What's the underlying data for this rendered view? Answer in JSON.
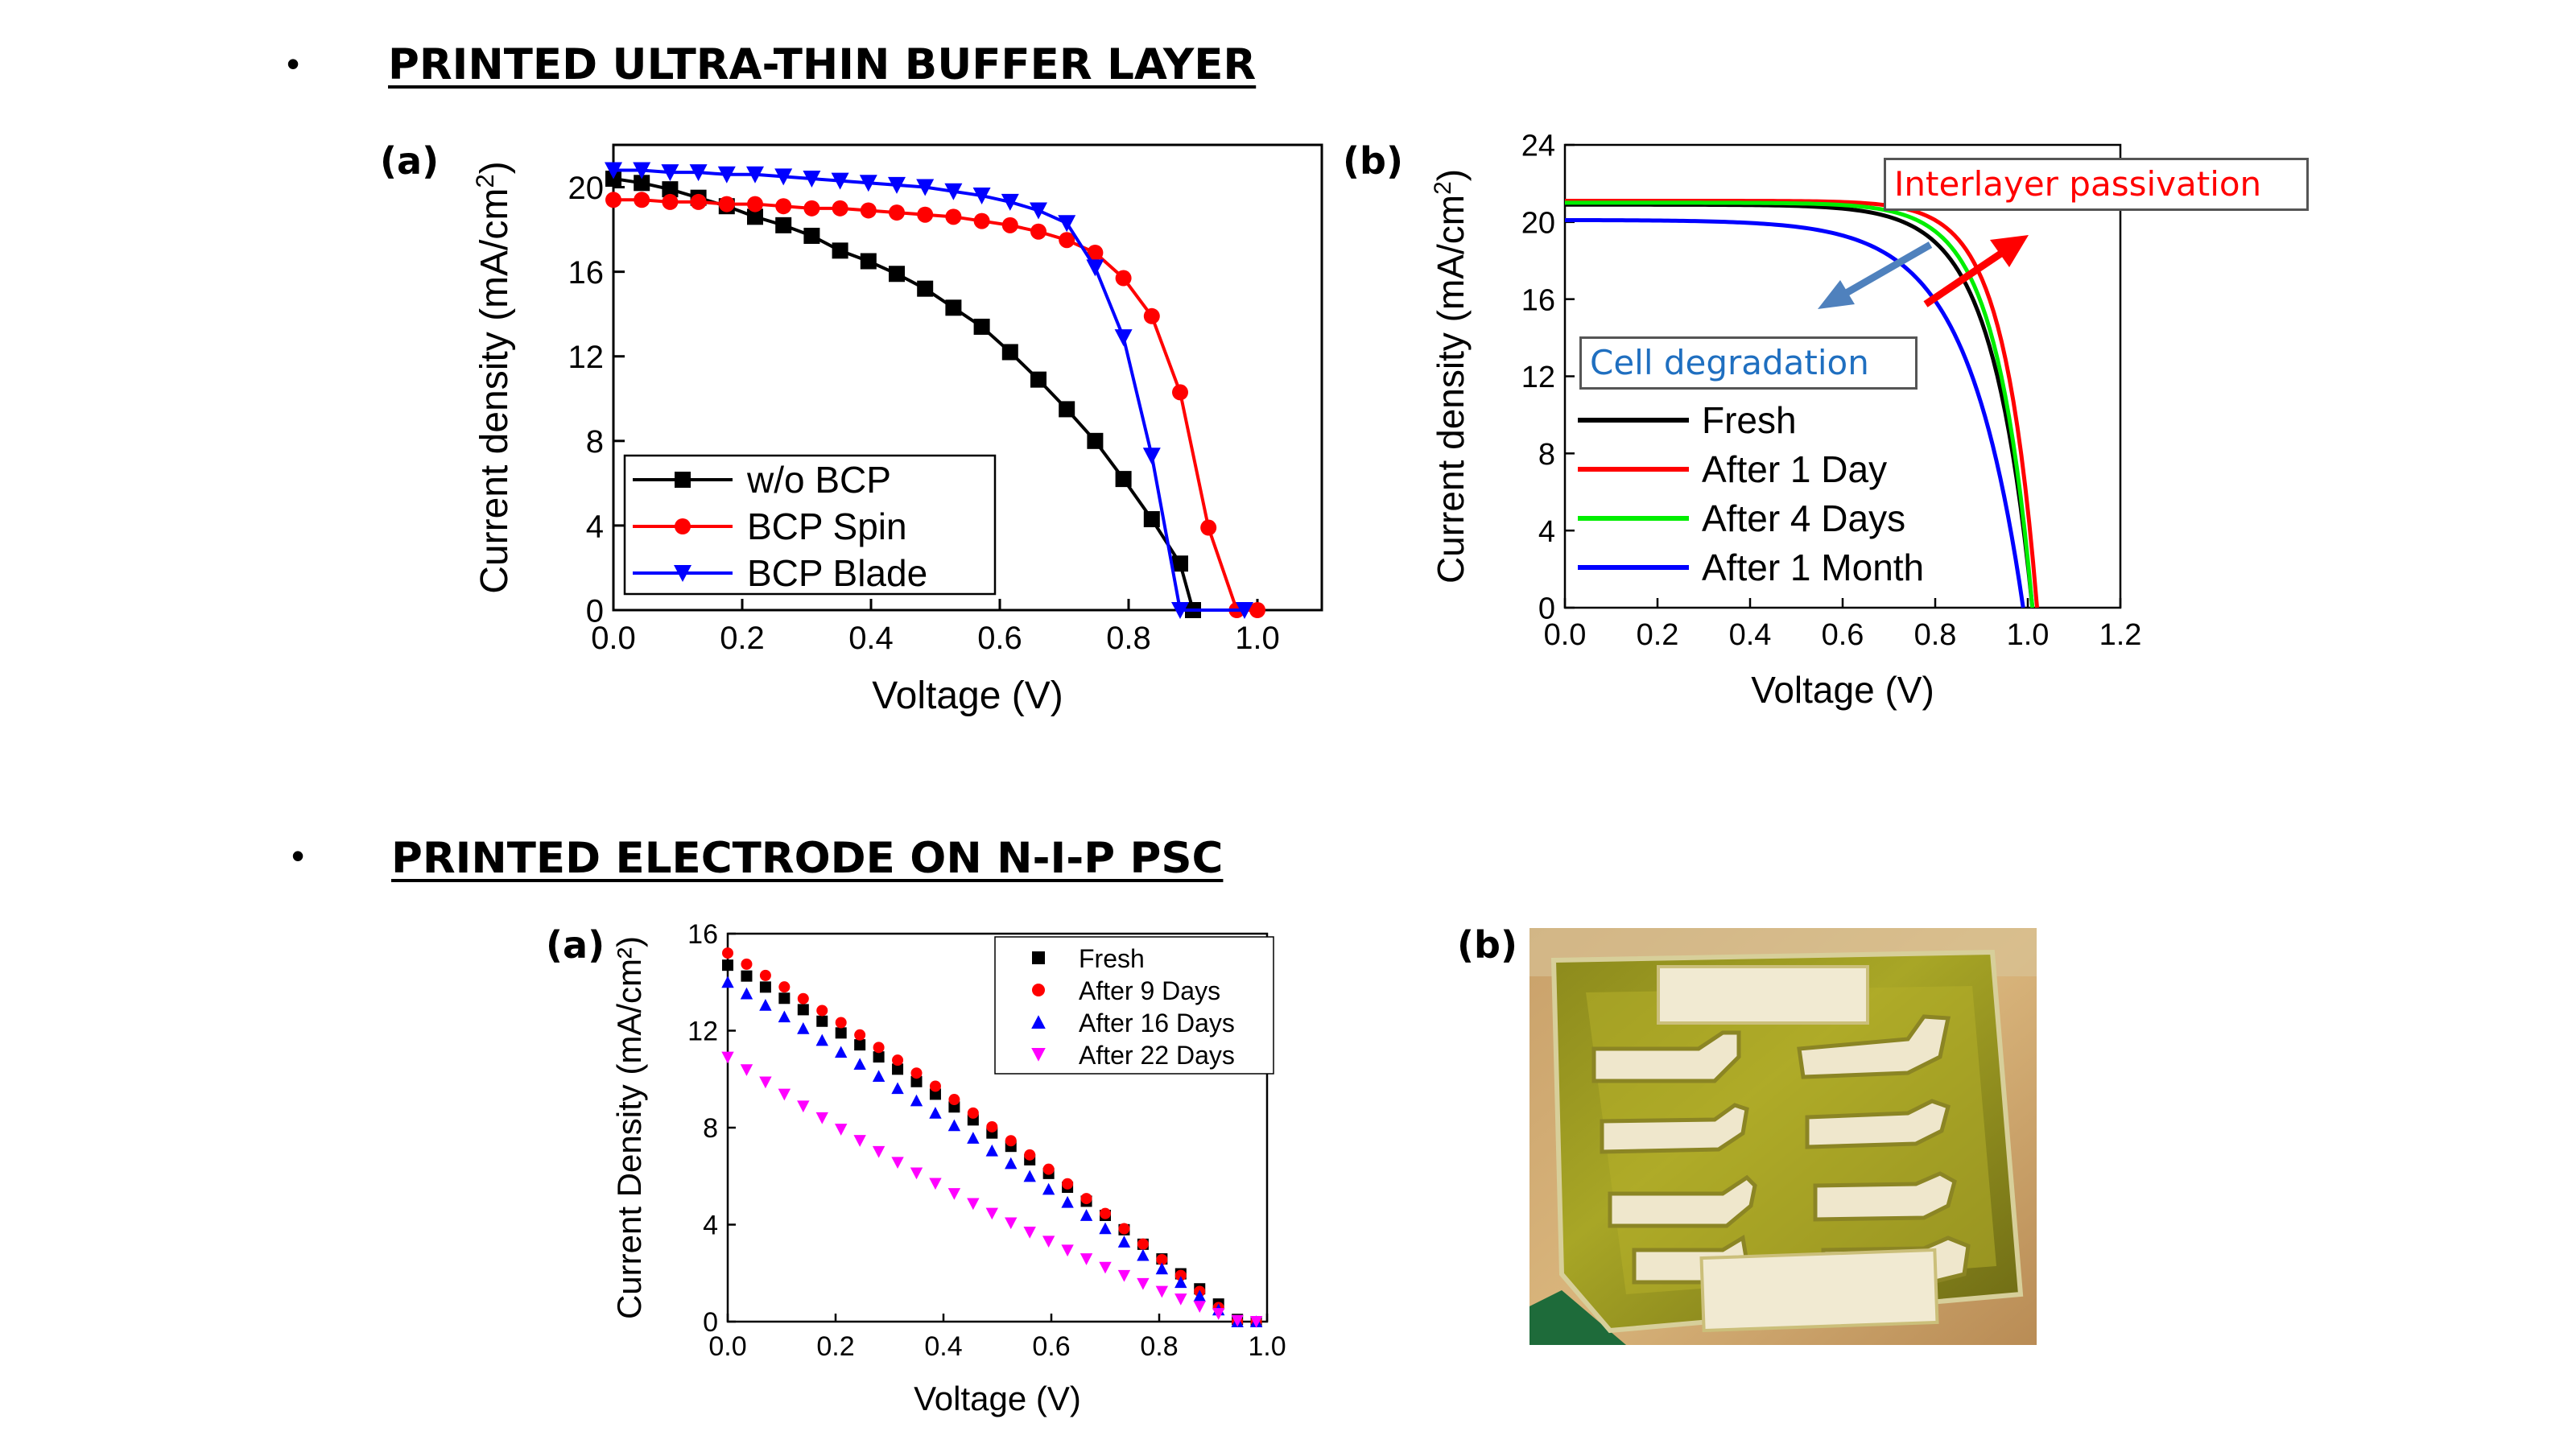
{
  "sections": [
    {
      "bullet": "•",
      "title": "PRINTED ULTRA-THIN BUFFER LAYER"
    },
    {
      "bullet": "•",
      "title": "PRINTED ELECTRODE ON N-I-P PSC"
    }
  ],
  "panel_labels": {
    "top_a": "(a)",
    "top_b": "(b)",
    "bottom_a": "(a)",
    "bottom_b": "(b)"
  },
  "annotations": {
    "interlayer": "Interlayer passivation",
    "degradation": "Cell degradation"
  },
  "photo": {
    "description_icon": "printed-device-photo"
  },
  "chart_data": [
    {
      "type": "line",
      "xlabel": "Voltage (V)",
      "ylabel": "Current density (mA/cm",
      "ylabel_sup": "2",
      "ylabel_tail": ")",
      "xlim": [
        0,
        1.1
      ],
      "ylim": [
        0,
        22
      ],
      "xticks": [
        0.0,
        0.2,
        0.4,
        0.6,
        0.8,
        1.0
      ],
      "xtick_labels": [
        "0.0",
        "0.2",
        "0.4",
        "0.6",
        "0.8",
        "1.0"
      ],
      "yticks": [
        0,
        4,
        8,
        12,
        16,
        20
      ],
      "ytick_labels": [
        "0",
        "4",
        "8",
        "12",
        "16",
        "20"
      ],
      "legend": "lower-left",
      "series": [
        {
          "name": "w/o BCP",
          "color": "#000000",
          "marker": "square",
          "x": [
            0.0,
            0.044,
            0.088,
            0.132,
            0.176,
            0.22,
            0.264,
            0.308,
            0.352,
            0.396,
            0.44,
            0.484,
            0.528,
            0.572,
            0.616,
            0.66,
            0.704,
            0.748,
            0.792,
            0.836,
            0.88,
            0.9
          ],
          "y": [
            20.4,
            20.2,
            19.9,
            19.5,
            19.1,
            18.6,
            18.2,
            17.7,
            17.0,
            16.5,
            15.9,
            15.2,
            14.3,
            13.4,
            12.2,
            10.9,
            9.5,
            8.0,
            6.2,
            4.3,
            2.2,
            0.0
          ]
        },
        {
          "name": "BCP Spin",
          "color": "#ff0000",
          "marker": "circle",
          "x": [
            0.0,
            0.044,
            0.088,
            0.132,
            0.176,
            0.22,
            0.264,
            0.308,
            0.352,
            0.396,
            0.44,
            0.484,
            0.528,
            0.572,
            0.616,
            0.66,
            0.704,
            0.748,
            0.792,
            0.836,
            0.88,
            0.924,
            0.968,
            1.0
          ],
          "y": [
            19.4,
            19.4,
            19.3,
            19.3,
            19.2,
            19.2,
            19.1,
            19.0,
            19.0,
            18.9,
            18.8,
            18.7,
            18.6,
            18.4,
            18.2,
            17.9,
            17.5,
            16.9,
            15.7,
            13.9,
            10.3,
            3.9,
            0.0,
            0.0
          ]
        },
        {
          "name": "BCP Blade",
          "color": "#0000ff",
          "marker": "triangle-down",
          "x": [
            0.0,
            0.044,
            0.088,
            0.132,
            0.176,
            0.22,
            0.264,
            0.308,
            0.352,
            0.396,
            0.44,
            0.484,
            0.528,
            0.572,
            0.616,
            0.66,
            0.704,
            0.748,
            0.792,
            0.836,
            0.88,
            0.924,
            0.98
          ],
          "y": [
            20.8,
            20.8,
            20.7,
            20.7,
            20.6,
            20.6,
            20.5,
            20.4,
            20.3,
            20.2,
            20.1,
            20.0,
            19.8,
            19.6,
            19.3,
            18.9,
            18.3,
            16.2,
            12.9,
            7.3,
            0.0,
            0.0,
            0.0
          ]
        }
      ]
    },
    {
      "type": "line",
      "xlabel": "Voltage (V)",
      "ylabel": "Current density (mA/cm",
      "ylabel_sup": "2",
      "ylabel_tail": ")",
      "xlim": [
        0,
        1.2
      ],
      "ylim": [
        0,
        24
      ],
      "xticks": [
        0.0,
        0.2,
        0.4,
        0.6,
        0.8,
        1.0,
        1.2
      ],
      "xtick_labels": [
        "0.0",
        "0.2",
        "0.4",
        "0.6",
        "0.8",
        "1.0",
        "1.2"
      ],
      "yticks": [
        0,
        4,
        8,
        12,
        16,
        20,
        24
      ],
      "ytick_labels": [
        "0",
        "4",
        "8",
        "12",
        "16",
        "20",
        "24"
      ],
      "legend": "lower-left",
      "series": [
        {
          "name": "Fresh",
          "color": "#000000",
          "Jsc": 20.9,
          "Voc": 1.01,
          "n": 1.9
        },
        {
          "name": "After 1 Day",
          "color": "#ff0000",
          "Jsc": 21.1,
          "Voc": 1.02,
          "n": 1.55
        },
        {
          "name": "After 4 Days",
          "color": "#00ee00",
          "Jsc": 21.0,
          "Voc": 1.01,
          "n": 1.7
        },
        {
          "name": "After 1 Month",
          "color": "#0000ff",
          "Jsc": 20.1,
          "Voc": 0.99,
          "n": 2.6
        }
      ]
    },
    {
      "type": "scatter",
      "xlabel": "Voltage (V)",
      "ylabel": "Current Density (mA/cm²)",
      "xlim": [
        0,
        1.0
      ],
      "ylim": [
        0,
        16
      ],
      "xticks": [
        0.0,
        0.2,
        0.4,
        0.6,
        0.8,
        1.0
      ],
      "xtick_labels": [
        "0.0",
        "0.2",
        "0.4",
        "0.6",
        "0.8",
        "1.0"
      ],
      "yticks": [
        0,
        4,
        8,
        12,
        16
      ],
      "ytick_labels": [
        "0",
        "4",
        "8",
        "12",
        "16"
      ],
      "legend": "top-right",
      "series": [
        {
          "name": "Fresh",
          "color": "#000000",
          "marker": "square",
          "Jsc": 14.7,
          "Voc": 0.95,
          "curv": 0.18
        },
        {
          "name": "After 9 Days",
          "color": "#ff0000",
          "marker": "circle",
          "Jsc": 15.2,
          "Voc": 0.94,
          "curv": 0.2
        },
        {
          "name": "After 16 Days",
          "color": "#0000ff",
          "marker": "triangle-up",
          "Jsc": 14.0,
          "Voc": 0.94,
          "curv": 0.1
        },
        {
          "name": "After 22 Days",
          "color": "#ff00ff",
          "marker": "triangle-down",
          "Jsc": 10.9,
          "Voc": 0.95,
          "curv": -0.3
        }
      ]
    }
  ]
}
